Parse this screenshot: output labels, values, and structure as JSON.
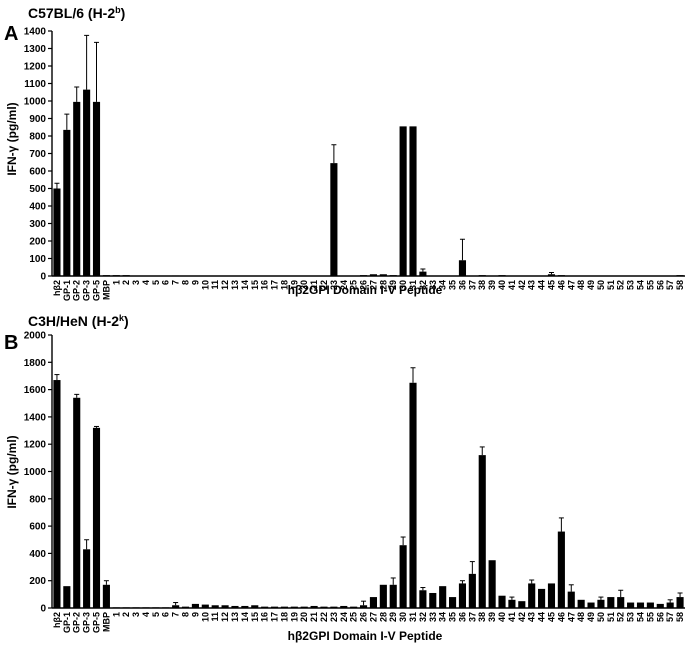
{
  "chart_data": [
    {
      "panel": "A",
      "type": "bar",
      "title": "C57BL/6 (H-2",
      "title_sup": "b",
      "title_end": ")",
      "xlabel": "hβ2GPI Domain I-V Peptide",
      "ylabel": "IFN-γ (pg/ml)",
      "ylim": [
        0,
        1400
      ],
      "yticks": [
        0,
        100,
        200,
        300,
        400,
        500,
        600,
        700,
        800,
        900,
        1000,
        1100,
        1200,
        1300,
        1400
      ],
      "categories": [
        "hβ2",
        "GP-1",
        "GP-2",
        "GP-3",
        "GP-5",
        "MBP",
        "1",
        "2",
        "3",
        "4",
        "5",
        "6",
        "7",
        "8",
        "9",
        "10",
        "11",
        "12",
        "13",
        "14",
        "15",
        "16",
        "17",
        "18",
        "19",
        "20",
        "21",
        "22",
        "23",
        "24",
        "25",
        "26",
        "27",
        "28",
        "29",
        "30",
        "31",
        "32",
        "33",
        "34",
        "35",
        "36",
        "37",
        "38",
        "39",
        "40",
        "41",
        "42",
        "43",
        "44",
        "45",
        "46",
        "47",
        "48",
        "49",
        "50",
        "51",
        "52",
        "53",
        "54",
        "55",
        "56",
        "57",
        "58"
      ],
      "values": [
        500,
        835,
        995,
        1065,
        995,
        5,
        5,
        5,
        2,
        2,
        2,
        2,
        3,
        2,
        2,
        2,
        2,
        2,
        2,
        2,
        2,
        2,
        2,
        2,
        2,
        2,
        2,
        2,
        645,
        2,
        2,
        5,
        10,
        10,
        5,
        855,
        855,
        25,
        2,
        2,
        2,
        90,
        2,
        5,
        2,
        5,
        2,
        2,
        2,
        2,
        10,
        5,
        2,
        2,
        2,
        2,
        2,
        2,
        2,
        2,
        2,
        2,
        2,
        5
      ],
      "errors": [
        30,
        90,
        85,
        310,
        340,
        0,
        0,
        0,
        0,
        0,
        0,
        0,
        0,
        0,
        0,
        0,
        0,
        0,
        0,
        0,
        0,
        0,
        0,
        0,
        0,
        0,
        0,
        0,
        105,
        0,
        0,
        0,
        0,
        0,
        0,
        0,
        0,
        15,
        0,
        0,
        0,
        120,
        0,
        0,
        0,
        0,
        0,
        0,
        0,
        0,
        10,
        0,
        0,
        0,
        0,
        0,
        0,
        0,
        0,
        0,
        0,
        0,
        0,
        0
      ]
    },
    {
      "panel": "B",
      "type": "bar",
      "title": "C3H/HeN (H-2",
      "title_sup": "k",
      "title_end": ")",
      "xlabel": "hβ2GPI Domain I-V Peptide",
      "ylabel": "IFN-γ (pg/ml)",
      "ylim": [
        0,
        2000
      ],
      "yticks": [
        0,
        200,
        400,
        600,
        800,
        1000,
        1200,
        1400,
        1600,
        1800,
        2000
      ],
      "categories": [
        "hβ2",
        "GP-1",
        "GP-2",
        "GP-3",
        "GP-5",
        "MBP",
        "1",
        "2",
        "3",
        "4",
        "5",
        "6",
        "7",
        "8",
        "9",
        "10",
        "11",
        "12",
        "13",
        "14",
        "15",
        "16",
        "17",
        "18",
        "19",
        "20",
        "21",
        "22",
        "23",
        "24",
        "25",
        "26",
        "27",
        "28",
        "29",
        "30",
        "31",
        "32",
        "33",
        "34",
        "35",
        "36",
        "37",
        "38",
        "39",
        "40",
        "41",
        "42",
        "43",
        "44",
        "45",
        "46",
        "47",
        "48",
        "49",
        "50",
        "51",
        "52",
        "53",
        "54",
        "55",
        "56",
        "57",
        "58"
      ],
      "values": [
        1670,
        160,
        1540,
        430,
        1320,
        170,
        5,
        5,
        5,
        5,
        5,
        5,
        20,
        10,
        30,
        25,
        20,
        20,
        15,
        15,
        20,
        10,
        10,
        10,
        10,
        10,
        15,
        10,
        10,
        15,
        10,
        20,
        80,
        170,
        170,
        460,
        1650,
        130,
        110,
        160,
        80,
        180,
        250,
        1120,
        350,
        90,
        60,
        50,
        180,
        140,
        180,
        560,
        120,
        60,
        40,
        60,
        80,
        80,
        40,
        40,
        40,
        30,
        40,
        80
      ],
      "errors": [
        40,
        0,
        25,
        70,
        10,
        30,
        0,
        0,
        0,
        0,
        0,
        0,
        20,
        0,
        0,
        0,
        0,
        0,
        0,
        0,
        0,
        0,
        0,
        0,
        0,
        0,
        0,
        0,
        0,
        0,
        0,
        30,
        0,
        0,
        50,
        60,
        110,
        20,
        0,
        0,
        0,
        20,
        90,
        60,
        0,
        0,
        20,
        0,
        25,
        0,
        0,
        100,
        50,
        0,
        0,
        20,
        0,
        50,
        0,
        0,
        0,
        0,
        20,
        30
      ]
    }
  ],
  "colors": {
    "bar": "#000000",
    "axis": "#000000",
    "background": "#ffffff"
  }
}
